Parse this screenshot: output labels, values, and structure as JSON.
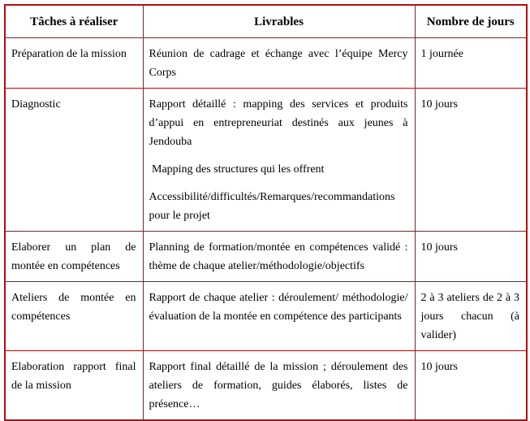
{
  "table": {
    "headers": [
      "Tâches à réaliser",
      "Livrables",
      "Nombre de jours"
    ],
    "rows": [
      {
        "task": "Préparation de la mission",
        "deliverables": [
          "Réunion de cadrage et échange avec l’équipe Mercy Corps"
        ],
        "days": "1 journée"
      },
      {
        "task": "Diagnostic",
        "deliverables": [
          "Rapport détaillé : mapping des services et produits d’appui en entrepreneuriat destinés aux jeunes à Jendouba",
          " Mapping des structures qui les offrent",
          "Accessibilité/difficultés/Remarques/recommandations pour le projet"
        ],
        "days": "10 jours"
      },
      {
        "task": "Elaborer un plan de montée en compétences",
        "deliverables": [
          "Planning de formation/montée en compétences validé : thème de chaque atelier/méthodologie/objectifs"
        ],
        "days": "10 jours"
      },
      {
        "task": "Ateliers de montée en compétences",
        "deliverables": [
          "Rapport de chaque atelier : déroulement/ méthodologie/ évaluation de la montée en compétence des participants"
        ],
        "days": "2 à 3 ateliers de 2 à 3 jours chacun (à valider)"
      },
      {
        "task": "Elaboration rapport final de la mission",
        "deliverables": [
          "Rapport final détaillé de la mission ; déroulement des ateliers de formation, guides élaborés, listes de présence…"
        ],
        "days": "10 jours"
      }
    ]
  },
  "colors": {
    "border": "#a81414",
    "text": "#000000",
    "background": "#ffffff"
  }
}
